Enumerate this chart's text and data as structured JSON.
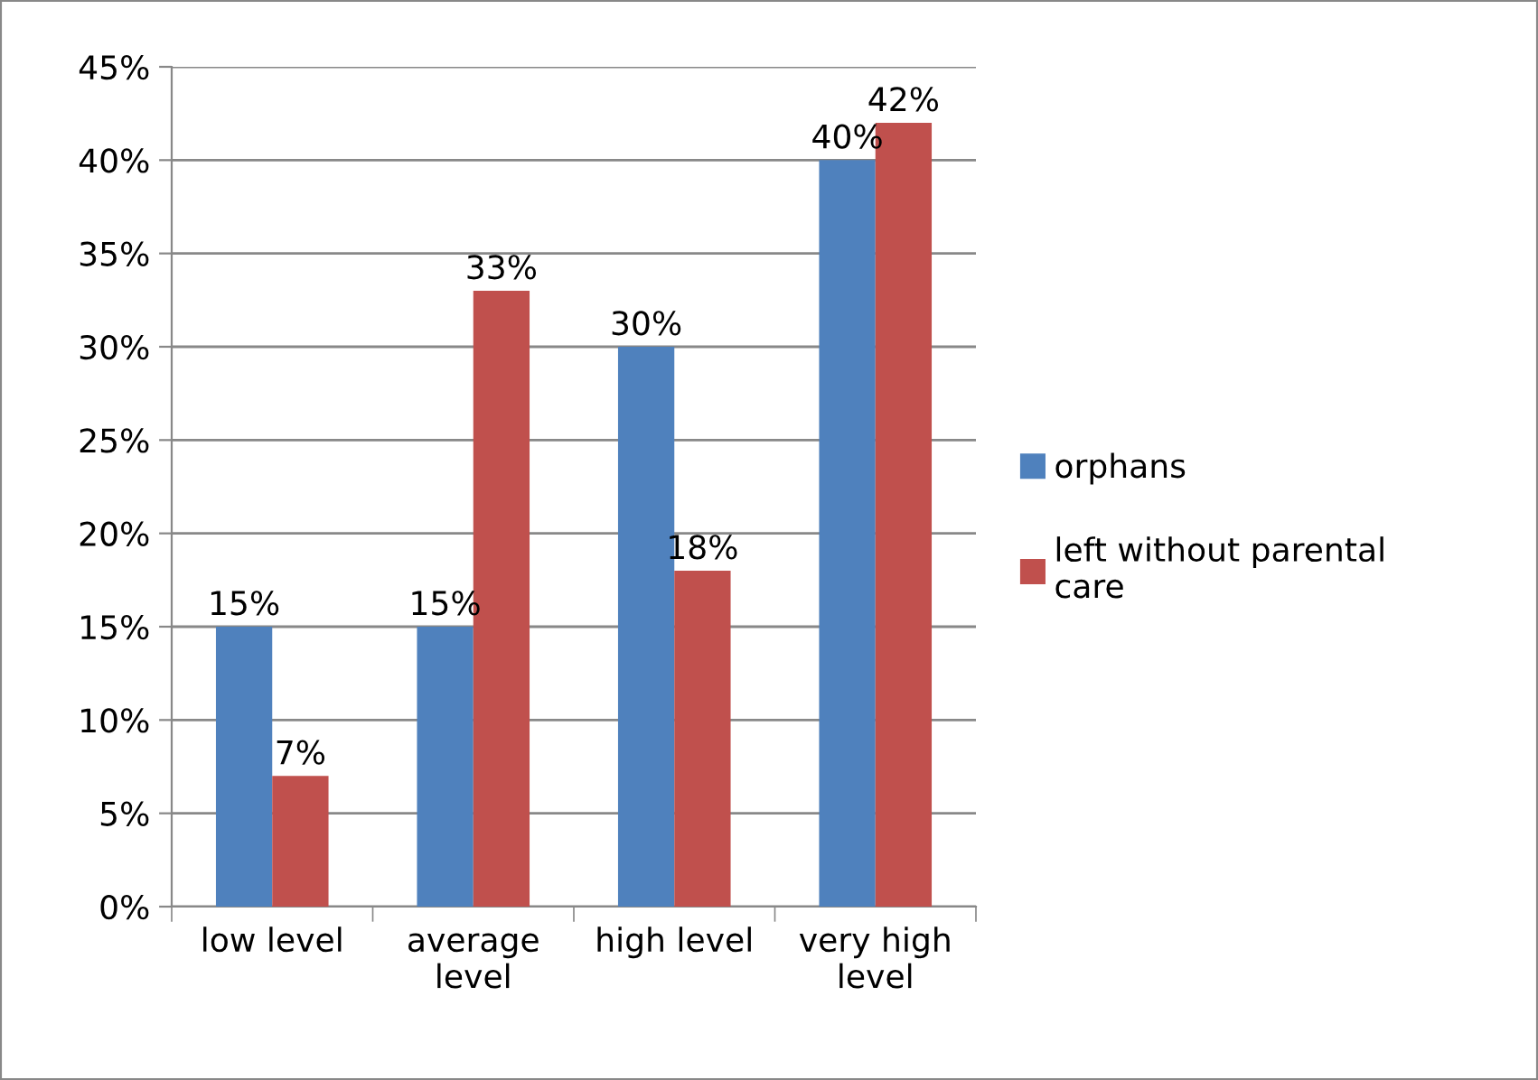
{
  "chart_data": {
    "type": "bar",
    "categories": [
      "low level",
      "average\nlevel",
      "high level",
      "very high\nlevel"
    ],
    "series": [
      {
        "name": "orphans",
        "color": "#4f81bd",
        "values": [
          15,
          15,
          30,
          40
        ],
        "value_labels": [
          "15%",
          "15%",
          "30%",
          "40%"
        ]
      },
      {
        "name": "left without parental\ncare",
        "color": "#c0504d",
        "values": [
          7,
          33,
          18,
          42
        ],
        "value_labels": [
          "7%",
          "33%",
          "18%",
          "42%"
        ]
      }
    ],
    "ylim": [
      0,
      45
    ],
    "yticks": [
      {
        "value": 0,
        "label": "0%"
      },
      {
        "value": 5,
        "label": "5%"
      },
      {
        "value": 10,
        "label": "10%"
      },
      {
        "value": 15,
        "label": "15%"
      },
      {
        "value": 20,
        "label": "20%"
      },
      {
        "value": 25,
        "label": "25%"
      },
      {
        "value": 30,
        "label": "30%"
      },
      {
        "value": 35,
        "label": "35%"
      },
      {
        "value": 40,
        "label": "40%"
      },
      {
        "value": 45,
        "label": "45%"
      }
    ],
    "grid": "y",
    "legend": "right"
  }
}
